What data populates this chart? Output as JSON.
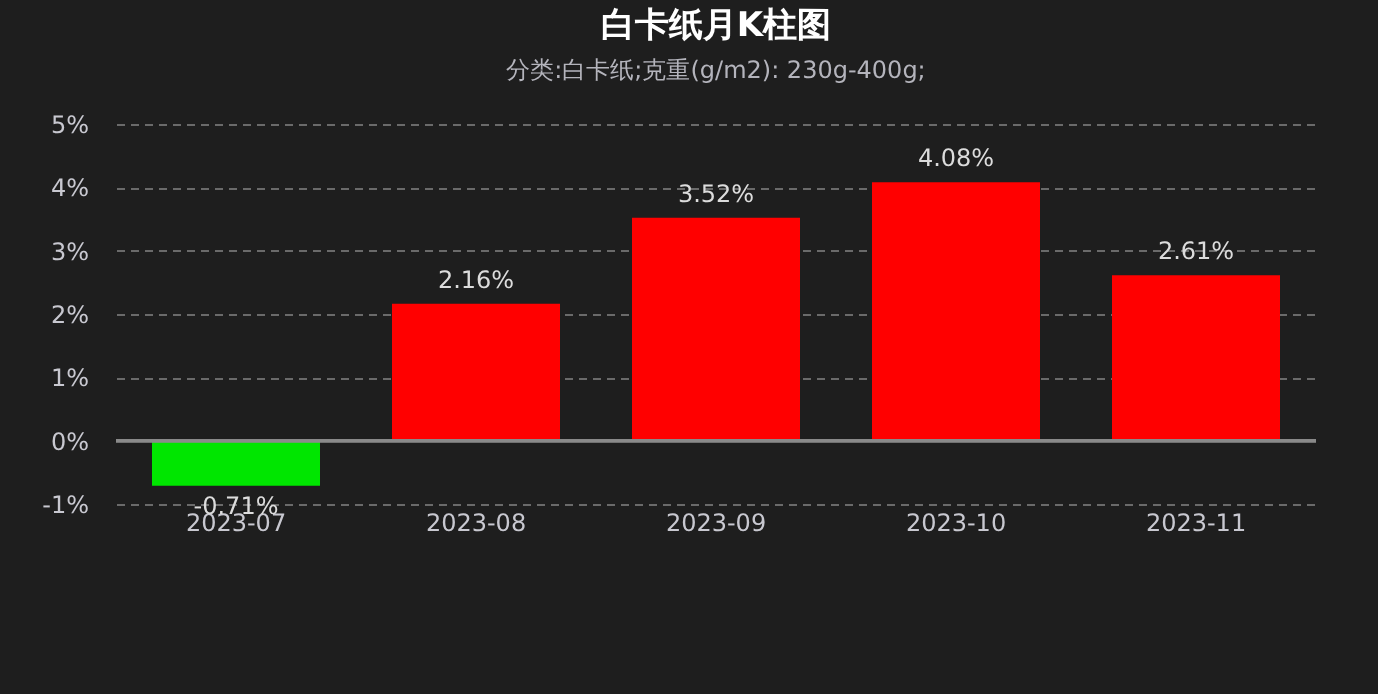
{
  "chart_data": {
    "type": "bar",
    "title": "白卡纸月K柱图",
    "subtitle": "分类:白卡纸;克重(g/m2): 230g-400g;",
    "categories": [
      "2023-07",
      "2023-08",
      "2023-09",
      "2023-10",
      "2023-11"
    ],
    "values": [
      -0.71,
      2.16,
      3.52,
      4.08,
      2.61
    ],
    "colors": [
      "#00e600",
      "#ff0000",
      "#ff0000",
      "#ff0000",
      "#ff0000"
    ],
    "value_labels": [
      "-0.71%",
      "2.16%",
      "3.52%",
      "4.08%",
      "2.61%"
    ],
    "ylim": [
      -1,
      5
    ],
    "yticks": [
      {
        "value": -1,
        "label": "-1%"
      },
      {
        "value": 0,
        "label": "0%"
      },
      {
        "value": 1,
        "label": "1%"
      },
      {
        "value": 2,
        "label": "2%"
      },
      {
        "value": 3,
        "label": "3%"
      },
      {
        "value": 4,
        "label": "4%"
      },
      {
        "value": 5,
        "label": "5%"
      }
    ],
    "grid": "y"
  }
}
